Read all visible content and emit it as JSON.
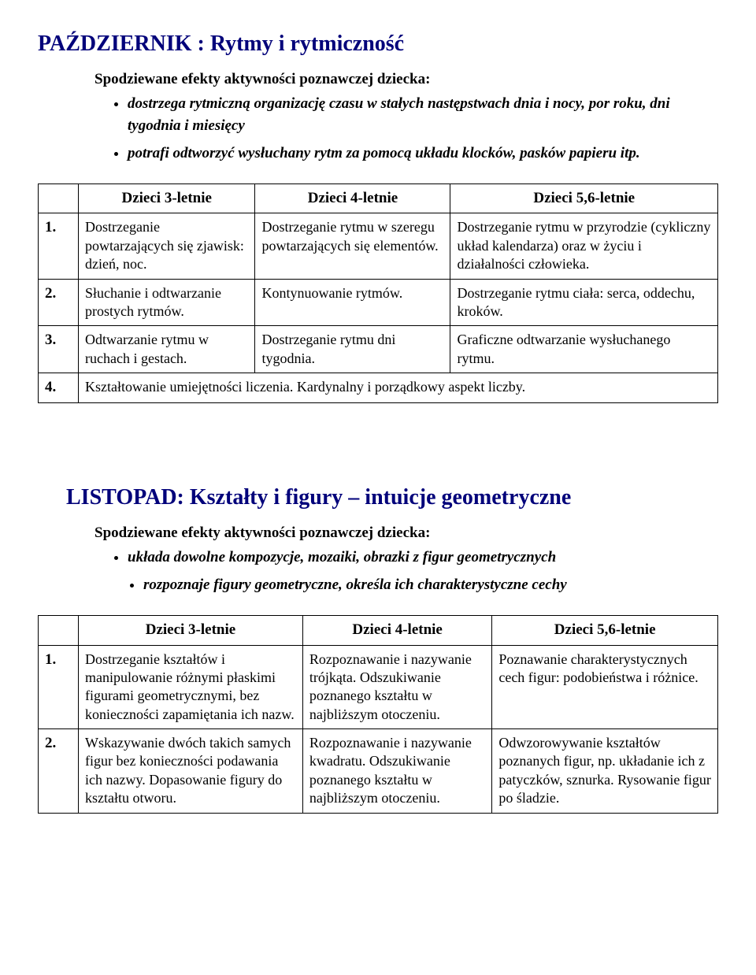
{
  "section1": {
    "title": "PAŹDZIERNIK : Rytmy i rytmiczność",
    "subhead": "Spodziewane efekty aktywności poznawczej dziecka:",
    "effects": [
      "dostrzega rytmiczną organizację czasu w stałych następstwach dnia i nocy, por roku, dni tygodnia i miesięcy",
      "potrafi odtworzyć wysłuchany rytm za pomocą układu klocków, pasków papieru itp."
    ],
    "headers": [
      "Dzieci 3-letnie",
      "Dzieci 4-letnie",
      "Dzieci 5,6-letnie"
    ],
    "rows": [
      {
        "n": "1.",
        "c1": "Dostrzeganie powtarzających się zjawisk: dzień, noc.",
        "c2": "Dostrzeganie rytmu w szeregu powtarzających się elementów.",
        "c3": "Dostrzeganie rytmu w przyrodzie (cykliczny układ kalendarza) oraz w życiu i działalności człowieka."
      },
      {
        "n": "2.",
        "c1": "Słuchanie i odtwarzanie prostych rytmów.",
        "c2": "Kontynuowanie rytmów.",
        "c3": "Dostrzeganie rytmu ciała: serca, oddechu, kroków."
      },
      {
        "n": "3.",
        "c1": "Odtwarzanie rytmu w ruchach i gestach.",
        "c2": "Dostrzeganie rytmu dni tygodnia.",
        "c3": "Graficzne odtwarzanie wysłuchanego rytmu."
      }
    ],
    "row4": {
      "n": "4.",
      "text": "Kształtowanie umiejętności liczenia. Kardynalny i porządkowy aspekt liczby."
    }
  },
  "section2": {
    "title": "LISTOPAD: Kształty i figury – intuicje geometryczne",
    "subhead": "Spodziewane efekty aktywności poznawczej dziecka:",
    "effects": [
      "układa dowolne kompozycje, mozaiki, obrazki z figur geometrycznych",
      "rozpoznaje figury geometryczne, określa ich charakterystyczne cechy"
    ],
    "headers": [
      "Dzieci 3-letnie",
      "Dzieci 4-letnie",
      "Dzieci 5,6-letnie"
    ],
    "rows": [
      {
        "n": "1.",
        "c1": "Dostrzeganie kształtów i manipulowanie różnymi płaskimi figurami geometrycznymi, bez konieczności zapamiętania ich nazw.",
        "c2": "Rozpoznawanie i nazywanie trójkąta. Odszukiwanie poznanego kształtu w najbliższym otoczeniu.",
        "c3": "Poznawanie charakterystycznych cech figur: podobieństwa i różnice."
      },
      {
        "n": "2.",
        "c1": "Wskazywanie dwóch takich samych figur bez konieczności podawania ich nazwy. Dopasowanie figury do kształtu otworu.",
        "c2": "Rozpoznawanie i nazywanie kwadratu. Odszukiwanie poznanego kształtu w najbliższym otoczeniu.",
        "c3": "Odwzorowywanie kształtów poznanych figur, np. układanie ich z patyczków, sznurka. Rysowanie figur po śladzie."
      }
    ]
  }
}
